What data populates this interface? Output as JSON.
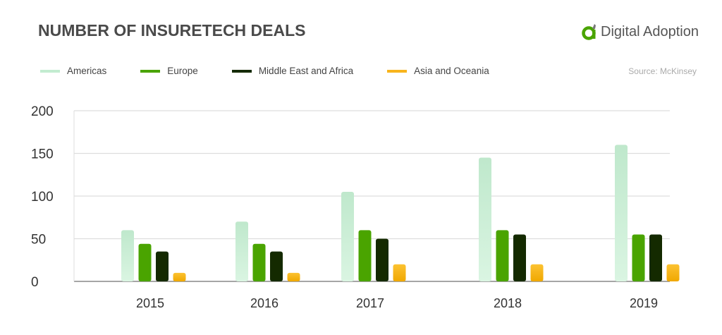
{
  "header": {
    "title": "NUMBER OF INSURETECH DEALS",
    "logo_text": "Digital Adoption",
    "source": "Source: McKinsey"
  },
  "colors": {
    "Americas": "#c3ecd0",
    "Europe": "#4aa400",
    "Middle East and Africa": "#142a00",
    "Asia and Oceania": "#f8b41c"
  },
  "chart_data": {
    "type": "bar",
    "title": "NUMBER OF INSURETECH DEALS",
    "categories": [
      "2015",
      "2016",
      "2017",
      "2018",
      "2019"
    ],
    "series": [
      {
        "name": "Americas",
        "values": [
          60,
          70,
          105,
          145,
          160
        ]
      },
      {
        "name": "Europe",
        "values": [
          44,
          44,
          60,
          60,
          55
        ]
      },
      {
        "name": "Middle East and Africa",
        "values": [
          35,
          35,
          50,
          55,
          55
        ]
      },
      {
        "name": "Asia and Oceania",
        "values": [
          10,
          10,
          20,
          20,
          20
        ]
      }
    ],
    "ylim": [
      0,
      200
    ],
    "yticks": [
      "0",
      "50",
      "100",
      "150",
      "200"
    ],
    "grid": true,
    "legend": "top-left"
  }
}
